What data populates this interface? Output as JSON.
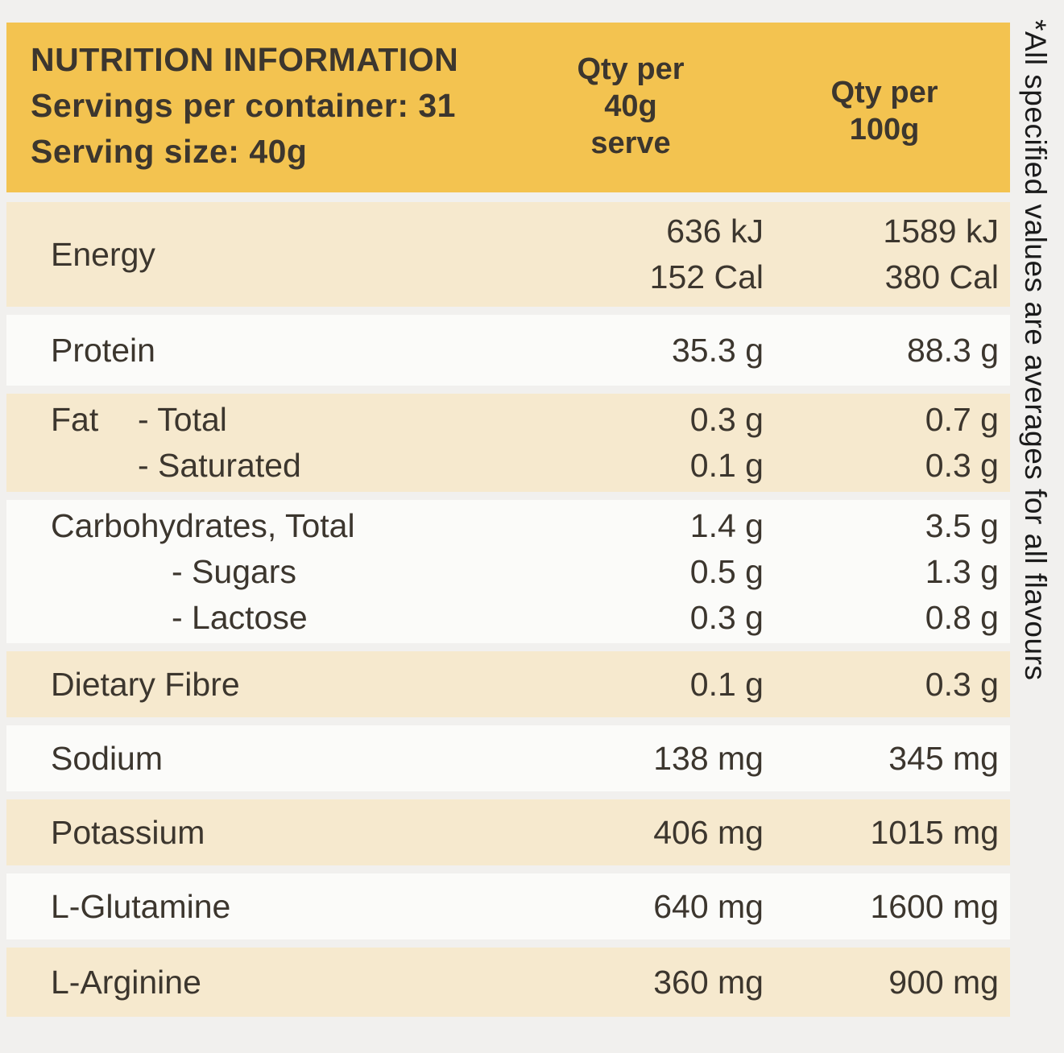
{
  "header": {
    "title": "NUTRITION INFORMATION",
    "servings": "Servings per container: 31",
    "serving_size": "Serving size: 40g",
    "col_serve": "Qty per\n40g\nserve",
    "col_100g": "Qty per\n100g"
  },
  "table": {
    "rows": [
      {
        "name": "Energy",
        "label": "Energy",
        "v40": [
          "636 kJ",
          "152 Cal"
        ],
        "v100": [
          "1589 kJ",
          "380 Cal"
        ]
      },
      {
        "name": "Protein",
        "label": "Protein",
        "v40": "35.3 g",
        "v100": "88.3 g"
      },
      {
        "name": "Fat",
        "label": "Fat",
        "lines": [
          {
            "label": "- Total",
            "v40": "0.3 g",
            "v100": "0.7 g"
          },
          {
            "label": "- Saturated",
            "v40": "0.1 g",
            "v100": "0.3 g"
          }
        ]
      },
      {
        "name": "Carbohydrates",
        "lines": [
          {
            "label": "Carbohydrates, Total",
            "v40": "1.4 g",
            "v100": "3.5 g"
          },
          {
            "label": "- Sugars",
            "v40": "0.5 g",
            "v100": "1.3 g"
          },
          {
            "label": "- Lactose",
            "v40": "0.3 g",
            "v100": "0.8 g"
          }
        ]
      },
      {
        "name": "Dietary Fibre",
        "label": "Dietary Fibre",
        "v40": "0.1 g",
        "v100": "0.3 g"
      },
      {
        "name": "Sodium",
        "label": "Sodium",
        "v40": "138 mg",
        "v100": "345 mg"
      },
      {
        "name": "Potassium",
        "label": "Potassium",
        "v40": "406 mg",
        "v100": "1015 mg"
      },
      {
        "name": "L-Glutamine",
        "label": "L-Glutamine",
        "v40": "640 mg",
        "v100": "1600 mg"
      },
      {
        "name": "L-Arginine",
        "label": "L-Arginine",
        "v40": "360 mg",
        "v100": "900 mg"
      }
    ]
  },
  "side_note": {
    "text": "*All specified values are averages for all flavours"
  },
  "colors": {
    "page_bg": "#f1f0ee",
    "header_yellow": "#f3c350",
    "row_cream": "#f6e9ce",
    "row_white": "#fbfbf9",
    "text_dark": "#3c362e",
    "note_black": "#1b1b1b"
  }
}
